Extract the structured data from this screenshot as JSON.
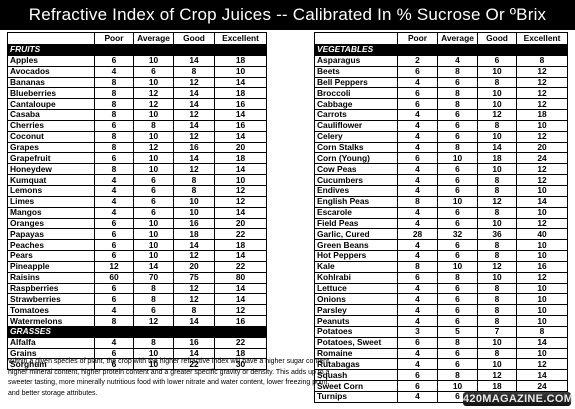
{
  "title": "Refractive Index of Crop Juices  --  Calibrated In % Sucrose Or ºBrix",
  "columns": [
    "Poor",
    "Average",
    "Good",
    "Excellent"
  ],
  "left_sections": [
    {
      "label": "FRUITS",
      "rows": [
        [
          "Apples",
          "6",
          "10",
          "14",
          "18"
        ],
        [
          "Avocados",
          "4",
          "6",
          "8",
          "10"
        ],
        [
          "Bananas",
          "8",
          "10",
          "12",
          "14"
        ],
        [
          "Blueberries",
          "8",
          "12",
          "14",
          "18"
        ],
        [
          "Cantaloupe",
          "8",
          "12",
          "14",
          "16"
        ],
        [
          "Casaba",
          "8",
          "10",
          "12",
          "14"
        ],
        [
          "Cherries",
          "6",
          "8",
          "14",
          "16"
        ],
        [
          "Coconut",
          "8",
          "10",
          "12",
          "14"
        ],
        [
          "Grapes",
          "8",
          "12",
          "16",
          "20"
        ],
        [
          "Grapefruit",
          "6",
          "10",
          "14",
          "18"
        ],
        [
          "Honeydew",
          "8",
          "10",
          "12",
          "14"
        ],
        [
          "Kumquat",
          "4",
          "6",
          "8",
          "10"
        ],
        [
          "Lemons",
          "4",
          "6",
          "8",
          "12"
        ],
        [
          "Limes",
          "4",
          "6",
          "10",
          "12"
        ],
        [
          "Mangos",
          "4",
          "6",
          "10",
          "14"
        ],
        [
          "Oranges",
          "6",
          "10",
          "16",
          "20"
        ],
        [
          "Papayas",
          "6",
          "10",
          "18",
          "22"
        ],
        [
          "Peaches",
          "6",
          "10",
          "14",
          "18"
        ],
        [
          "Pears",
          "6",
          "10",
          "12",
          "14"
        ],
        [
          "Pineapple",
          "12",
          "14",
          "20",
          "22"
        ],
        [
          "Raisins",
          "60",
          "70",
          "75",
          "80"
        ],
        [
          "Raspberries",
          "6",
          "8",
          "12",
          "14"
        ],
        [
          "Strawberries",
          "6",
          "8",
          "12",
          "14"
        ],
        [
          "Tomatoes",
          "4",
          "6",
          "8",
          "12"
        ],
        [
          "Watermelons",
          "8",
          "12",
          "14",
          "16"
        ]
      ]
    },
    {
      "label": "GRASSES",
      "rows": [
        [
          "Alfalfa",
          "4",
          "8",
          "16",
          "22"
        ],
        [
          "Grains",
          "6",
          "10",
          "14",
          "18"
        ],
        [
          "Sorghum",
          "6",
          "10",
          "22",
          "30"
        ]
      ]
    }
  ],
  "right_sections": [
    {
      "label": "VEGETABLES",
      "rows": [
        [
          "Asparagus",
          "2",
          "4",
          "6",
          "8"
        ],
        [
          "Beets",
          "6",
          "8",
          "10",
          "12"
        ],
        [
          "Bell Peppers",
          "4",
          "6",
          "8",
          "12"
        ],
        [
          "Broccoli",
          "6",
          "8",
          "10",
          "12"
        ],
        [
          "Cabbage",
          "6",
          "8",
          "10",
          "12"
        ],
        [
          "Carrots",
          "4",
          "6",
          "12",
          "18"
        ],
        [
          "Cauliflower",
          "4",
          "6",
          "8",
          "10"
        ],
        [
          "Celery",
          "4",
          "6",
          "10",
          "12"
        ],
        [
          "Corn Stalks",
          "4",
          "8",
          "14",
          "20"
        ],
        [
          "Corn (Young)",
          "6",
          "10",
          "18",
          "24"
        ],
        [
          "Cow Peas",
          "4",
          "6",
          "10",
          "12"
        ],
        [
          "Cucumbers",
          "4",
          "6",
          "8",
          "12"
        ],
        [
          "Endives",
          "4",
          "6",
          "8",
          "10"
        ],
        [
          "English Peas",
          "8",
          "10",
          "12",
          "14"
        ],
        [
          "Escarole",
          "4",
          "6",
          "8",
          "10"
        ],
        [
          "Field Peas",
          "4",
          "6",
          "10",
          "12"
        ],
        [
          "Garlic, Cured",
          "28",
          "32",
          "36",
          "40"
        ],
        [
          "Green Beans",
          "4",
          "6",
          "8",
          "10"
        ],
        [
          "Hot Peppers",
          "4",
          "6",
          "8",
          "10"
        ],
        [
          "Kale",
          "8",
          "10",
          "12",
          "16"
        ],
        [
          "Kohlrabi",
          "6",
          "8",
          "10",
          "12"
        ],
        [
          "Lettuce",
          "4",
          "6",
          "8",
          "10"
        ],
        [
          "Onions",
          "4",
          "6",
          "8",
          "10"
        ],
        [
          "Parsley",
          "4",
          "6",
          "8",
          "10"
        ],
        [
          "Peanuts",
          "4",
          "6",
          "8",
          "10"
        ],
        [
          "Potatoes",
          "3",
          "5",
          "7",
          "8"
        ],
        [
          "Potatoes, Sweet",
          "6",
          "8",
          "10",
          "14"
        ],
        [
          "Romaine",
          "4",
          "6",
          "8",
          "10"
        ],
        [
          "Rutabagas",
          "4",
          "6",
          "10",
          "12"
        ],
        [
          "Squash",
          "6",
          "8",
          "12",
          "14"
        ],
        [
          "Sweet Corn",
          "6",
          "10",
          "18",
          "24"
        ],
        [
          "Turnips",
          "4",
          "6",
          "8",
          "10"
        ]
      ]
    }
  ],
  "footnote": "Within a given species of plant, the crop with the higher refractive index  will have a higher sugar content, higher mineral content, higher protein content and a greater specific gravity or density.  This adds up to a sweeter tasting, more minerally nutritious food with lower nitrate and water content, lower freezing point, and better storage attributes.",
  "watermark": "420MAGAZINE.COM"
}
